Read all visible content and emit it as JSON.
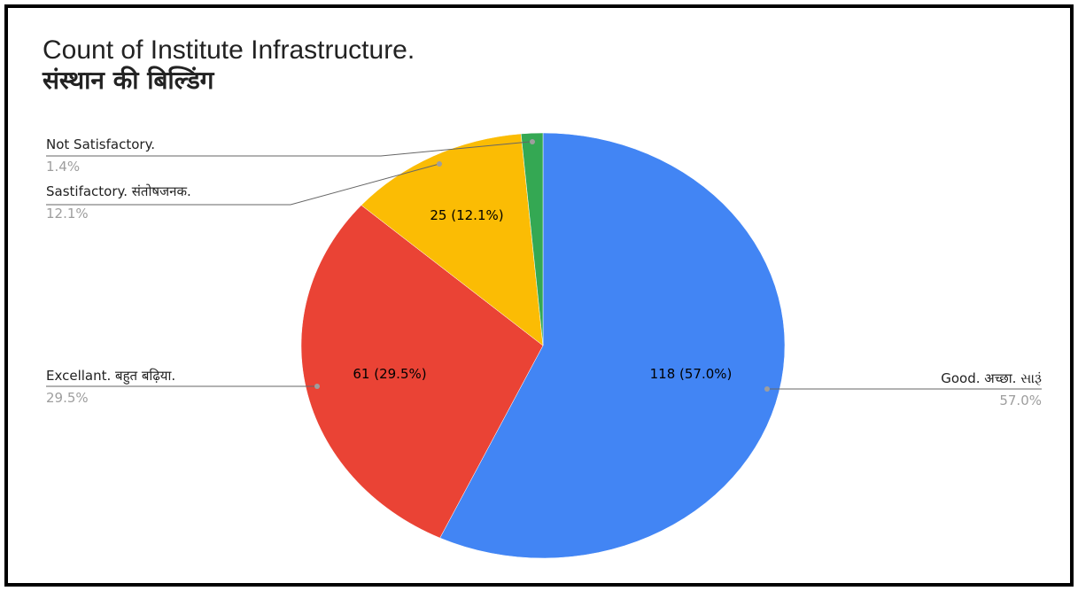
{
  "chart_data": {
    "type": "pie",
    "title": "Count of Institute Infrastructure.",
    "subtitle": "संस्थान की  बिल्डिंग",
    "slices": [
      {
        "label": "Good. अच्छा. સારૂં",
        "value": 118,
        "percent": "57.0%",
        "data_label": "118 (57.0%)",
        "color": "#4285f4"
      },
      {
        "label": "Excellant. बहुत बढ़िया.",
        "value": 61,
        "percent": "29.5%",
        "data_label": "61 (29.5%)",
        "color": "#ea4335"
      },
      {
        "label": "Sastifactory. संतोषजनक.",
        "value": 25,
        "percent": "12.1%",
        "data_label": "25 (12.1%)",
        "color": "#fbbc04"
      },
      {
        "label": "Not Satisfactory.",
        "value": 3,
        "percent": "1.4%",
        "data_label": "",
        "color": "#34a853"
      }
    ],
    "start_angle": "top, clockwise"
  }
}
